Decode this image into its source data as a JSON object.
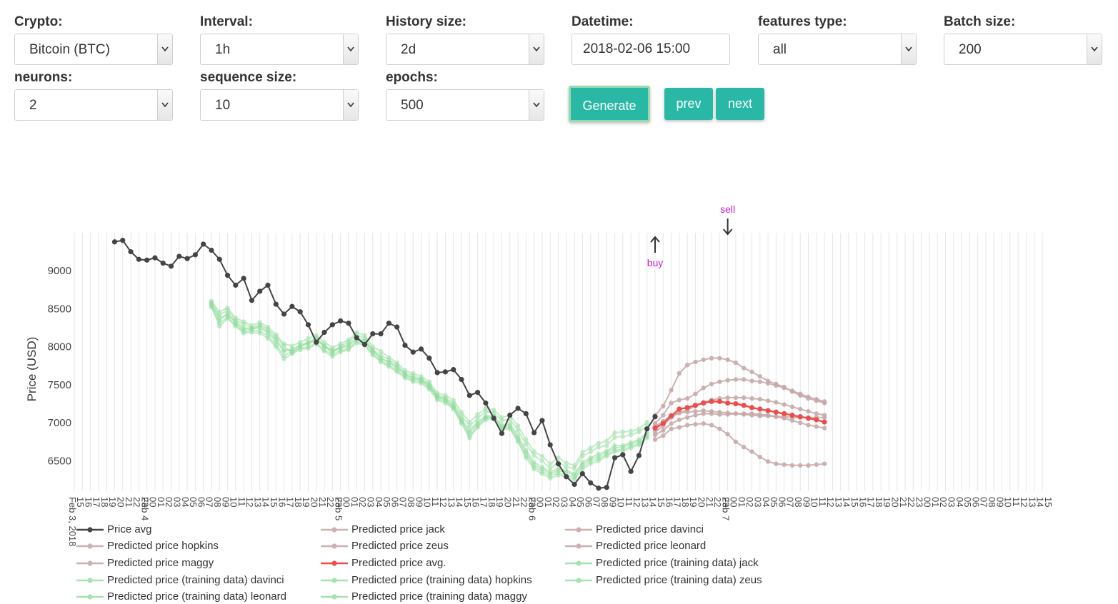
{
  "controls": {
    "crypto": {
      "label": "Crypto:",
      "value": "Bitcoin (BTC)"
    },
    "interval": {
      "label": "Interval:",
      "value": "1h"
    },
    "history": {
      "label": "History size:",
      "value": "2d"
    },
    "datetime": {
      "label": "Datetime:",
      "value": "2018-02-06 15:00"
    },
    "features": {
      "label": "features type:",
      "value": "all"
    },
    "batch": {
      "label": "Batch size:",
      "value": "200"
    },
    "neurons": {
      "label": "neurons:",
      "value": "2"
    },
    "sequence": {
      "label": "sequence size:",
      "value": "10"
    },
    "epochs": {
      "label": "epochs:",
      "value": "500"
    }
  },
  "buttons": {
    "generate": "Generate",
    "prev": "prev",
    "next": "next"
  },
  "colors": {
    "accent": "#2ab8a6",
    "actual": "#444444",
    "avg_pred": "#ef4b4b",
    "pred": "#c8a9a9",
    "training": "#8fdc9b",
    "signal": "#cc22cc"
  },
  "chart_data": {
    "type": "line",
    "ylabel": "Price (USD)",
    "xlabel": "",
    "ylim": [
      6100,
      9500
    ],
    "yticks": [
      6500,
      7000,
      7500,
      8000,
      8500,
      9000
    ],
    "grid": true,
    "x_start_label": "Feb 3, 2018",
    "x_range": [
      "2018-02-03 15:00",
      "2018-02-08 15:00"
    ],
    "x_tick_labels": [
      "15",
      "16",
      "17",
      "18",
      "19",
      "20",
      "21",
      "22",
      "23",
      "00",
      "01",
      "02",
      "03",
      "04",
      "05",
      "06",
      "07",
      "08",
      "09",
      "10",
      "11",
      "12",
      "13",
      "14",
      "15",
      "16",
      "17",
      "18",
      "19",
      "20",
      "21",
      "22",
      "23",
      "00",
      "01",
      "02",
      "03",
      "04",
      "05",
      "06",
      "07",
      "08",
      "09",
      "10",
      "11",
      "12",
      "13",
      "14",
      "15",
      "16",
      "17",
      "18",
      "19",
      "20",
      "21",
      "22",
      "23",
      "00",
      "01",
      "02",
      "03",
      "04",
      "05",
      "06",
      "07",
      "08",
      "09",
      "10",
      "11",
      "12",
      "13",
      "14",
      "15",
      "16",
      "17",
      "18",
      "19",
      "20",
      "21",
      "22",
      "23",
      "00",
      "01",
      "02",
      "03",
      "04",
      "05",
      "06",
      "07",
      "08",
      "09",
      "10",
      "11",
      "12",
      "13",
      "14",
      "15",
      "16",
      "17",
      "18",
      "19",
      "20",
      "21",
      "22",
      "23",
      "00",
      "01",
      "02",
      "03",
      "04",
      "05",
      "06",
      "07",
      "08",
      "09",
      "10",
      "11",
      "12",
      "13",
      "14",
      "15"
    ],
    "x_date_labels": [
      {
        "text": "Feb 3, 2018",
        "index": 0
      },
      {
        "text": "Feb 4",
        "index": 9
      },
      {
        "text": "Feb 5",
        "index": 33
      },
      {
        "text": "Feb 6",
        "index": 57
      },
      {
        "text": "Feb 7",
        "index": 81
      }
    ],
    "annotations": [
      {
        "text": "buy",
        "index": 72,
        "y": 7080,
        "direction": "up"
      },
      {
        "text": "sell",
        "index": 81,
        "y": 7300,
        "direction": "down"
      }
    ],
    "legend": [
      "Price avg",
      "Predicted price jack",
      "Predicted price davinci",
      "Predicted price hopkins",
      "Predicted price zeus",
      "Predicted price leonard",
      "Predicted price maggy",
      "Predicted price avg.",
      "Predicted price (training data) jack",
      "Predicted price (training data) davinci",
      "Predicted price (training data) hopkins",
      "Predicted price (training data) zeus",
      "Predicted price (training data) leonard",
      "Predicted price (training data) maggy"
    ],
    "series": [
      {
        "name": "Price avg",
        "start_index": 5,
        "values": [
          9380,
          9400,
          9250,
          9150,
          9140,
          9170,
          9100,
          9060,
          9190,
          9160,
          9210,
          9350,
          9270,
          9150,
          8940,
          8810,
          8900,
          8610,
          8730,
          8810,
          8560,
          8430,
          8530,
          8460,
          8290,
          8060,
          8190,
          8290,
          8340,
          8310,
          8120,
          8030,
          8170,
          8170,
          8310,
          8260,
          8020,
          7930,
          7970,
          7850,
          7660,
          7670,
          7700,
          7570,
          7360,
          7400,
          7260,
          7060,
          6860,
          7100,
          7190,
          7120,
          6870,
          7030,
          6710,
          6460,
          6290,
          6190,
          6330,
          6210,
          6140,
          6150,
          6540,
          6580,
          6360,
          6570,
          6920,
          7080
        ]
      },
      {
        "name": "Predicted price avg.",
        "start_index": 72,
        "values": [
          6930,
          6990,
          7090,
          7180,
          7200,
          7230,
          7260,
          7280,
          7280,
          7260,
          7250,
          7230,
          7200,
          7180,
          7160,
          7140,
          7120,
          7100,
          7080,
          7060,
          7040,
          7010
        ]
      },
      {
        "name": "Predicted price jack",
        "start_index": 72,
        "values": [
          7100,
          7220,
          7430,
          7650,
          7760,
          7800,
          7830,
          7850,
          7850,
          7830,
          7790,
          7720,
          7670,
          7610,
          7550,
          7510,
          7470,
          7410,
          7360,
          7320,
          7290,
          7260
        ]
      },
      {
        "name": "Predicted price hopkins",
        "start_index": 72,
        "values": [
          6990,
          7100,
          7260,
          7300,
          7320,
          7380,
          7460,
          7510,
          7540,
          7560,
          7570,
          7570,
          7550,
          7540,
          7520,
          7490,
          7460,
          7420,
          7380,
          7340,
          7310,
          7280
        ]
      },
      {
        "name": "Predicted price maggy",
        "start_index": 72,
        "values": [
          6880,
          6960,
          7070,
          7130,
          7170,
          7220,
          7270,
          7300,
          7320,
          7330,
          7330,
          7330,
          7320,
          7310,
          7290,
          7270,
          7240,
          7210,
          7180,
          7150,
          7120,
          7100
        ]
      },
      {
        "name": "Predicted price davinci",
        "start_index": 72,
        "values": [
          6950,
          7020,
          7100,
          7130,
          7140,
          7150,
          7160,
          7150,
          7140,
          7130,
          7120,
          7110,
          7100,
          7090,
          7090,
          7080,
          7080,
          7070,
          7070,
          7070,
          7070,
          7070
        ]
      },
      {
        "name": "Predicted price zeus",
        "start_index": 72,
        "values": [
          6840,
          6900,
          6990,
          7040,
          7070,
          7100,
          7120,
          7120,
          7110,
          7110,
          7120,
          7120,
          7120,
          7110,
          7100,
          7080,
          7060,
          7030,
          7000,
          6970,
          6950,
          6930
        ]
      },
      {
        "name": "Predicted price leonard",
        "start_index": 72,
        "values": [
          6780,
          6830,
          6920,
          6940,
          6970,
          6980,
          6990,
          6970,
          6920,
          6850,
          6750,
          6680,
          6620,
          6550,
          6490,
          6460,
          6450,
          6440,
          6440,
          6440,
          6450,
          6460
        ]
      },
      {
        "name": "Predicted price (training data) jack",
        "start_index": 17,
        "values": [
          8580,
          8420,
          8480,
          8350,
          8300,
          8250,
          8290,
          8230,
          8130,
          8010,
          7920,
          8000,
          8060,
          8120,
          8020,
          7920,
          8010,
          8060,
          8160,
          8110,
          7960,
          7890,
          7830,
          7760,
          7660,
          7620,
          7580,
          7510,
          7360,
          7330,
          7260,
          7090,
          6960,
          7060,
          7150,
          7130,
          7030,
          7050,
          6900,
          6720,
          6570,
          6500,
          6400,
          6480,
          6420,
          6400,
          6560,
          6620,
          6680,
          6700,
          6810,
          6820,
          6840,
          6880,
          6960
        ]
      },
      {
        "name": "Predicted price (training data) davinci",
        "start_index": 17,
        "values": [
          8550,
          8380,
          8420,
          8330,
          8250,
          8240,
          8250,
          8180,
          8070,
          7940,
          7970,
          8010,
          8040,
          8090,
          8010,
          7960,
          7990,
          8030,
          8120,
          8080,
          7940,
          7850,
          7800,
          7720,
          7640,
          7590,
          7560,
          7490,
          7350,
          7310,
          7230,
          7050,
          6900,
          7010,
          7090,
          7090,
          6970,
          6990,
          6830,
          6640,
          6480,
          6420,
          6350,
          6400,
          6370,
          6330,
          6480,
          6540,
          6590,
          6630,
          6700,
          6700,
          6740,
          6780,
          6870
        ]
      },
      {
        "name": "Predicted price (training data) hopkins",
        "start_index": 17,
        "values": [
          8520,
          8310,
          8390,
          8290,
          8200,
          8210,
          8210,
          8140,
          8030,
          7880,
          7940,
          7980,
          8000,
          8050,
          7960,
          7900,
          7950,
          7980,
          8070,
          8040,
          7910,
          7820,
          7760,
          7690,
          7610,
          7560,
          7540,
          7460,
          7320,
          7280,
          7200,
          7010,
          6830,
          6960,
          7060,
          7070,
          6930,
          6940,
          6770,
          6570,
          6420,
          6360,
          6300,
          6340,
          6310,
          6280,
          6420,
          6490,
          6530,
          6580,
          6640,
          6650,
          6690,
          6730,
          6820
        ]
      },
      {
        "name": "Predicted price (training data) zeus",
        "start_index": 17,
        "values": [
          8600,
          8460,
          8510,
          8380,
          8330,
          8280,
          8320,
          8260,
          8160,
          8040,
          8010,
          8060,
          8110,
          8150,
          8060,
          7990,
          8040,
          8090,
          8190,
          8150,
          8000,
          7940,
          7860,
          7790,
          7690,
          7650,
          7610,
          7540,
          7390,
          7360,
          7300,
          7140,
          7010,
          7110,
          7190,
          7170,
          7070,
          7100,
          6960,
          6780,
          6620,
          6560,
          6460,
          6540,
          6470,
          6440,
          6610,
          6670,
          6730,
          6760,
          6870,
          6880,
          6890,
          6920,
          7010
        ]
      },
      {
        "name": "Predicted price (training data) leonard",
        "start_index": 17,
        "values": [
          8570,
          8350,
          8440,
          8310,
          8230,
          8230,
          8270,
          8200,
          8100,
          7960,
          7950,
          8030,
          8050,
          8100,
          8000,
          7940,
          7980,
          8010,
          8100,
          8070,
          7950,
          7850,
          7790,
          7740,
          7630,
          7580,
          7570,
          7480,
          7340,
          7300,
          7210,
          7030,
          6870,
          6990,
          7070,
          7080,
          6950,
          6960,
          6800,
          6610,
          6450,
          6390,
          6330,
          6370,
          6350,
          6310,
          6450,
          6520,
          6560,
          6610,
          6670,
          6680,
          6720,
          6760,
          6850
        ]
      },
      {
        "name": "Predicted price (training data) maggy",
        "start_index": 17,
        "values": [
          8540,
          8270,
          8370,
          8270,
          8180,
          8190,
          8180,
          8110,
          8000,
          7840,
          7910,
          7960,
          7980,
          8030,
          7940,
          7870,
          7930,
          7960,
          8050,
          8020,
          7890,
          7800,
          7740,
          7670,
          7590,
          7540,
          7520,
          7440,
          7300,
          7260,
          7180,
          6990,
          6800,
          6940,
          7040,
          7050,
          6910,
          6920,
          6750,
          6540,
          6390,
          6330,
          6270,
          6310,
          6290,
          6250,
          6390,
          6460,
          6500,
          6560,
          6620,
          6630,
          6670,
          6710,
          6800
        ]
      }
    ]
  }
}
